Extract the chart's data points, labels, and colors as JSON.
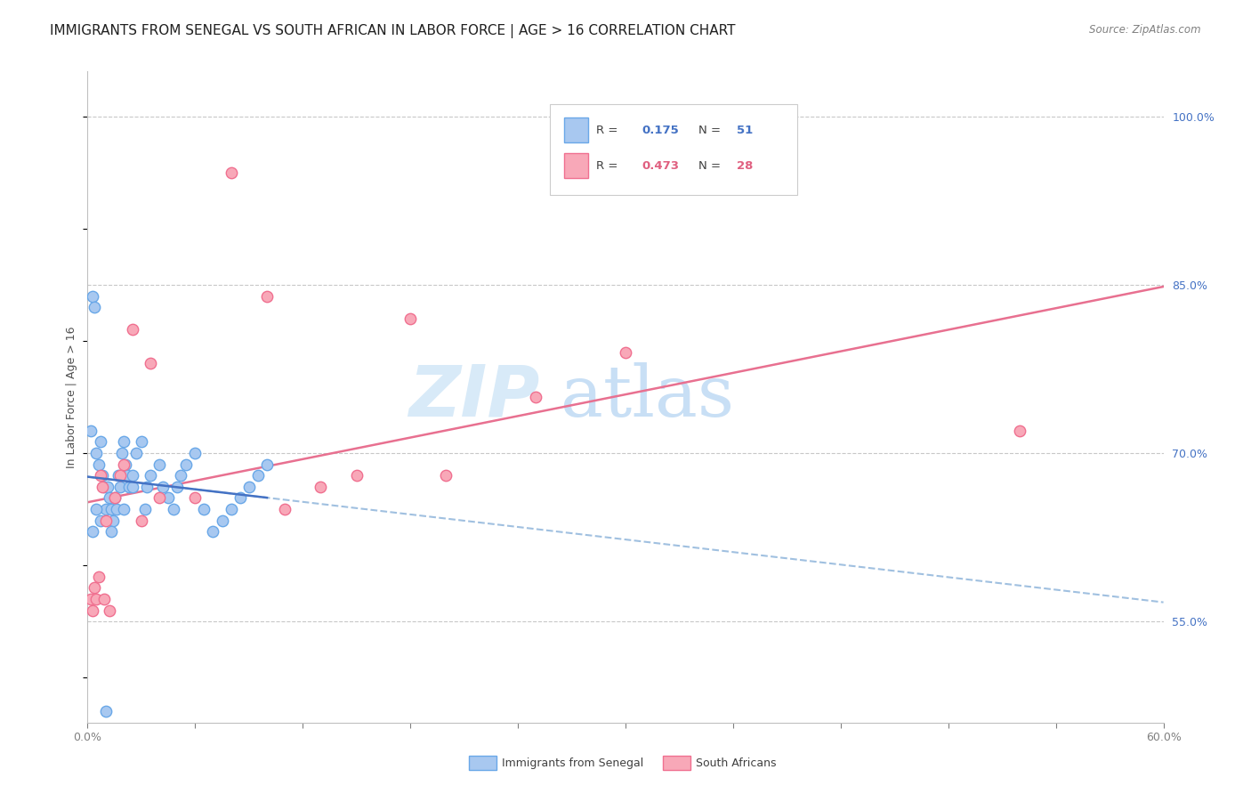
{
  "title": "IMMIGRANTS FROM SENEGAL VS SOUTH AFRICAN IN LABOR FORCE | AGE > 16 CORRELATION CHART",
  "source_text": "Source: ZipAtlas.com",
  "ylabel": "In Labor Force | Age > 16",
  "xlim": [
    0.0,
    0.6
  ],
  "ylim": [
    0.46,
    1.04
  ],
  "yticks": [
    0.55,
    0.7,
    0.85,
    1.0
  ],
  "ytick_labels": [
    "55.0%",
    "70.0%",
    "85.0%",
    "100.0%"
  ],
  "xticks": [
    0.0,
    0.06,
    0.12,
    0.18,
    0.24,
    0.3,
    0.36,
    0.42,
    0.48,
    0.54,
    0.6
  ],
  "xtick_labels": [
    "0.0%",
    "",
    "",
    "",
    "",
    "",
    "",
    "",
    "",
    "",
    "60.0%"
  ],
  "senegal_x": [
    0.002,
    0.003,
    0.004,
    0.005,
    0.006,
    0.007,
    0.008,
    0.009,
    0.01,
    0.011,
    0.012,
    0.013,
    0.014,
    0.015,
    0.016,
    0.017,
    0.018,
    0.019,
    0.02,
    0.021,
    0.022,
    0.023,
    0.025,
    0.027,
    0.03,
    0.032,
    0.033,
    0.035,
    0.04,
    0.042,
    0.045,
    0.048,
    0.05,
    0.052,
    0.055,
    0.06,
    0.065,
    0.07,
    0.075,
    0.08,
    0.085,
    0.09,
    0.095,
    0.1,
    0.003,
    0.005,
    0.007,
    0.01,
    0.013,
    0.02,
    0.025
  ],
  "senegal_y": [
    0.72,
    0.84,
    0.83,
    0.7,
    0.69,
    0.71,
    0.68,
    0.67,
    0.65,
    0.67,
    0.66,
    0.65,
    0.64,
    0.66,
    0.65,
    0.68,
    0.67,
    0.7,
    0.71,
    0.69,
    0.68,
    0.67,
    0.68,
    0.7,
    0.71,
    0.65,
    0.67,
    0.68,
    0.69,
    0.67,
    0.66,
    0.65,
    0.67,
    0.68,
    0.69,
    0.7,
    0.65,
    0.63,
    0.64,
    0.65,
    0.66,
    0.67,
    0.68,
    0.69,
    0.63,
    0.65,
    0.64,
    0.47,
    0.63,
    0.65,
    0.67
  ],
  "south_african_x": [
    0.002,
    0.003,
    0.004,
    0.005,
    0.006,
    0.007,
    0.008,
    0.009,
    0.01,
    0.012,
    0.015,
    0.018,
    0.02,
    0.025,
    0.03,
    0.035,
    0.04,
    0.06,
    0.08,
    0.1,
    0.11,
    0.13,
    0.15,
    0.18,
    0.2,
    0.25,
    0.3,
    0.52
  ],
  "south_african_y": [
    0.57,
    0.56,
    0.58,
    0.57,
    0.59,
    0.68,
    0.67,
    0.57,
    0.64,
    0.56,
    0.66,
    0.68,
    0.69,
    0.81,
    0.64,
    0.78,
    0.66,
    0.66,
    0.95,
    0.84,
    0.65,
    0.67,
    0.68,
    0.82,
    0.68,
    0.75,
    0.79,
    0.72
  ],
  "senegal_color": "#a8c8f0",
  "senegal_edge_color": "#6aa8e8",
  "south_african_color": "#f8a8b8",
  "south_african_edge_color": "#f07090",
  "senegal_R": 0.175,
  "senegal_N": 51,
  "south_african_R": 0.473,
  "south_african_N": 28,
  "blue_line_color": "#4472c4",
  "pink_line_color": "#e87090",
  "dashed_line_color": "#a0c0e0",
  "watermark_zip": "ZIP",
  "watermark_atlas": "atlas",
  "watermark_color_zip": "#d8eaf8",
  "watermark_color_atlas": "#c8dff5",
  "axis_color": "#4472c4",
  "title_fontsize": 11,
  "label_fontsize": 9,
  "tick_fontsize": 9,
  "legend_R_color_blue": "#4472c4",
  "legend_R_color_pink": "#e06080",
  "grid_color": "#c8c8c8"
}
